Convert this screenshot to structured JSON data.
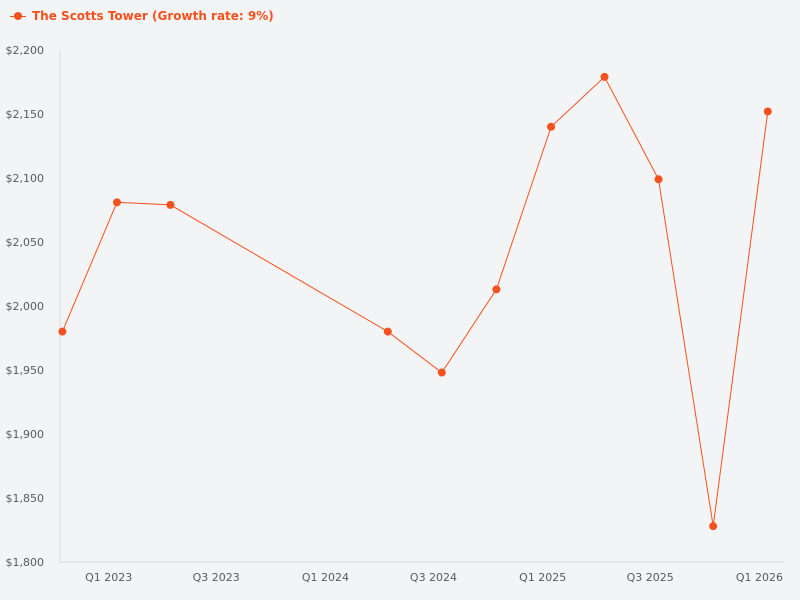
{
  "colors": {
    "series": "#f4511e",
    "axis": "#d6d9e0",
    "tick_text": "#555b66",
    "background": "#f3f4f6"
  },
  "chart_data": {
    "type": "line",
    "title": "",
    "xlabel": "",
    "ylabel": "",
    "legend_position": "top-left",
    "grid": false,
    "ylim": [
      1800,
      2200
    ],
    "y_ticks": [
      1800,
      1850,
      1900,
      1950,
      2000,
      2050,
      2100,
      2150,
      2200
    ],
    "y_tick_labels": [
      "$1,800",
      "$1,850",
      "$1,900",
      "$1,950",
      "$2,000",
      "$2,050",
      "$2,100",
      "$2,150",
      "$2,200"
    ],
    "x_range": [
      "2022-10-11",
      "2026-02-13"
    ],
    "x_ticks": [
      {
        "label": "Q1 2023",
        "date": "2023-01-01"
      },
      {
        "label": "Q3 2023",
        "date": "2023-07-01"
      },
      {
        "label": "Q1 2024",
        "date": "2024-01-01"
      },
      {
        "label": "Q3 2024",
        "date": "2024-07-01"
      },
      {
        "label": "Q1 2025",
        "date": "2025-01-01"
      },
      {
        "label": "Q3 2025",
        "date": "2025-07-01"
      },
      {
        "label": "Q1 2026",
        "date": "2026-01-01"
      }
    ],
    "series": [
      {
        "name": "The Scotts Tower (Growth rate: 9%)",
        "points": [
          {
            "x": "2022-10-15",
            "y": 1980
          },
          {
            "x": "2023-01-15",
            "y": 2081
          },
          {
            "x": "2023-04-15",
            "y": 2079
          },
          {
            "x": "2024-04-15",
            "y": 1980
          },
          {
            "x": "2024-07-15",
            "y": 1948
          },
          {
            "x": "2024-10-15",
            "y": 2013
          },
          {
            "x": "2025-01-15",
            "y": 2140
          },
          {
            "x": "2025-04-15",
            "y": 2179
          },
          {
            "x": "2025-07-15",
            "y": 2099
          },
          {
            "x": "2025-10-15",
            "y": 1828
          },
          {
            "x": "2026-01-15",
            "y": 2152
          }
        ]
      }
    ]
  }
}
